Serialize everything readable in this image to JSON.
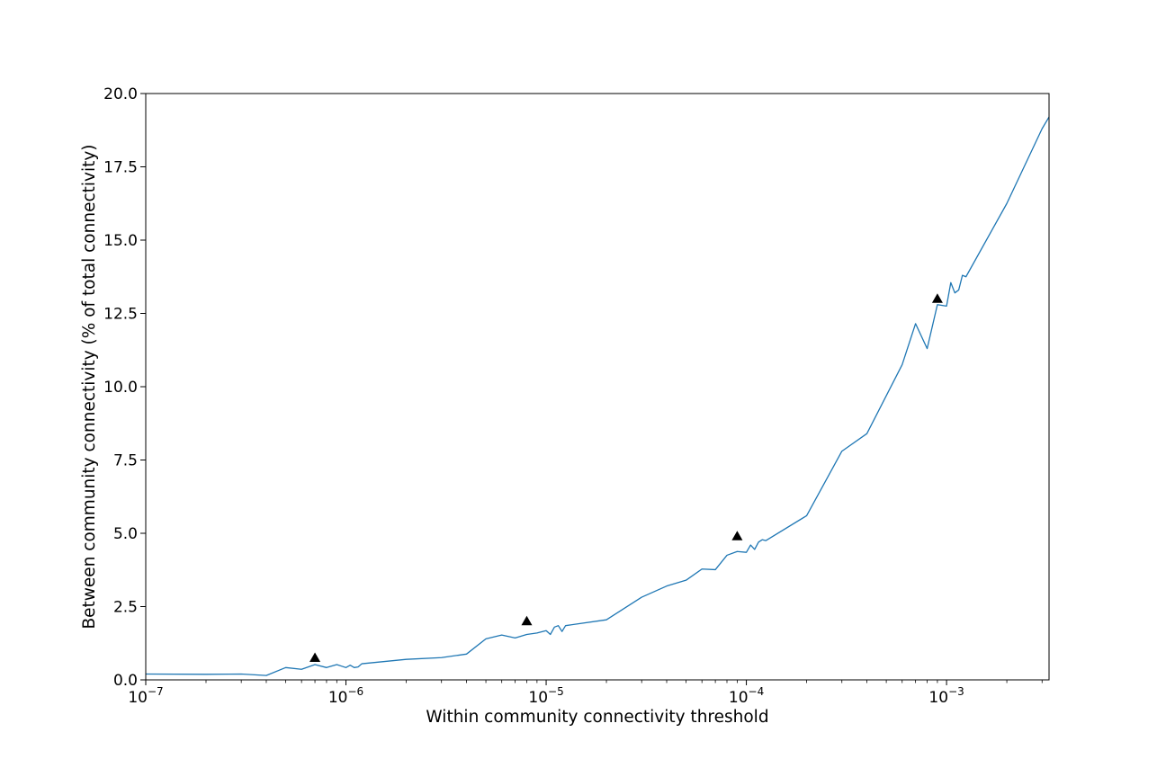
{
  "chart_data": {
    "type": "line",
    "title": "",
    "xlabel": "Within community connectivity threshold",
    "ylabel": "Between community connectivity (% of total connectivity)",
    "xscale": "log",
    "xlim": [
      1e-07,
      0.00325
    ],
    "ylim": [
      0,
      20
    ],
    "grid": false,
    "legend": "none",
    "x_tick_labels": [
      {
        "value": 1e-07,
        "base": "10",
        "exp": "−7"
      },
      {
        "value": 1e-06,
        "base": "10",
        "exp": "−6"
      },
      {
        "value": 1e-05,
        "base": "10",
        "exp": "−5"
      },
      {
        "value": 0.0001,
        "base": "10",
        "exp": "−4"
      },
      {
        "value": 0.001,
        "base": "10",
        "exp": "−3"
      }
    ],
    "y_ticks": [
      0,
      2.5,
      5,
      7.5,
      10,
      12.5,
      15,
      17.5,
      20
    ],
    "y_tick_labels": [
      "0.0",
      "2.5",
      "5.0",
      "7.5",
      "10.0",
      "12.5",
      "15.0",
      "17.5",
      "20.0"
    ],
    "series": [
      {
        "color": "#1f77b4",
        "points": [
          [
            1e-07,
            0.2
          ],
          [
            2e-07,
            0.19
          ],
          [
            3e-07,
            0.2
          ],
          [
            4e-07,
            0.15
          ],
          [
            5e-07,
            0.42
          ],
          [
            6e-07,
            0.36
          ],
          [
            7e-07,
            0.52
          ],
          [
            8e-07,
            0.42
          ],
          [
            9e-07,
            0.52
          ],
          [
            1e-06,
            0.42
          ],
          [
            1.05e-06,
            0.5
          ],
          [
            1.1e-06,
            0.42
          ],
          [
            1.15e-06,
            0.44
          ],
          [
            1.2e-06,
            0.55
          ],
          [
            2e-06,
            0.7
          ],
          [
            3e-06,
            0.76
          ],
          [
            4e-06,
            0.88
          ],
          [
            5e-06,
            1.4
          ],
          [
            6e-06,
            1.53
          ],
          [
            7e-06,
            1.43
          ],
          [
            8e-06,
            1.55
          ],
          [
            9e-06,
            1.6
          ],
          [
            1e-05,
            1.68
          ],
          [
            1.05e-05,
            1.55
          ],
          [
            1.1e-05,
            1.8
          ],
          [
            1.15e-05,
            1.85
          ],
          [
            1.2e-05,
            1.65
          ],
          [
            1.25e-05,
            1.85
          ],
          [
            2e-05,
            2.05
          ],
          [
            3e-05,
            2.82
          ],
          [
            4e-05,
            3.2
          ],
          [
            5e-05,
            3.4
          ],
          [
            6e-05,
            3.78
          ],
          [
            7e-05,
            3.76
          ],
          [
            8e-05,
            4.25
          ],
          [
            9e-05,
            4.38
          ],
          [
            0.0001,
            4.35
          ],
          [
            0.000105,
            4.6
          ],
          [
            0.00011,
            4.45
          ],
          [
            0.000115,
            4.7
          ],
          [
            0.00012,
            4.78
          ],
          [
            0.000125,
            4.75
          ],
          [
            0.0002,
            5.6
          ],
          [
            0.0003,
            7.8
          ],
          [
            0.0004,
            8.4
          ],
          [
            0.0006,
            10.75
          ],
          [
            0.0007,
            12.15
          ],
          [
            0.0008,
            11.3
          ],
          [
            0.0009,
            12.8
          ],
          [
            0.001,
            12.75
          ],
          [
            0.00105,
            13.55
          ],
          [
            0.0011,
            13.2
          ],
          [
            0.00115,
            13.3
          ],
          [
            0.0012,
            13.8
          ],
          [
            0.00125,
            13.75
          ],
          [
            0.002,
            16.25
          ],
          [
            0.003,
            18.8
          ],
          [
            0.00325,
            19.2
          ]
        ]
      }
    ],
    "markers": {
      "shape": "triangle-up",
      "color": "#000000",
      "points": [
        [
          7e-07,
          0.75
        ],
        [
          8e-06,
          2.0
        ],
        [
          9e-05,
          4.9
        ],
        [
          0.0009,
          13.0
        ]
      ]
    }
  }
}
